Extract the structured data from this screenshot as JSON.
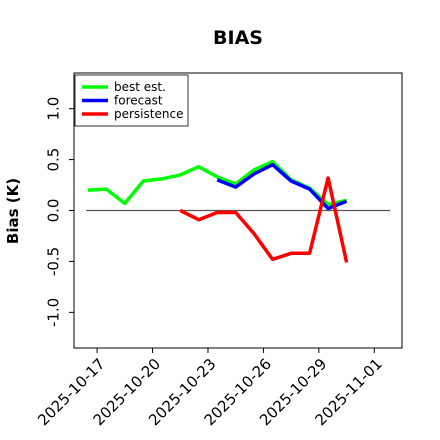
{
  "chart_data": {
    "type": "line",
    "title": "BIAS",
    "xlabel": "",
    "ylabel": "Bias (K)",
    "ylim": [
      -1.35,
      1.35
    ],
    "xlim": [
      "2025-10-15T18:00",
      "2025-11-02T12:00"
    ],
    "yticks": [
      -1.0,
      -0.5,
      0.0,
      0.5,
      1.0
    ],
    "ytick_labels": [
      "-1.0",
      "-0.5",
      "0.0",
      "0.5",
      "1.0"
    ],
    "xticks": [
      "2025-10-17",
      "2025-10-20",
      "2025-10-23",
      "2025-10-26",
      "2025-10-29",
      "2025-11-01"
    ],
    "xtick_labels": [
      "2025-10-17",
      "2025-10-20",
      "2025-10-23",
      "2025-10-26",
      "2025-10-29",
      "2025-11-01"
    ],
    "xtick_colors": [
      "#000000",
      "#000000",
      "#228B22",
      "#000000",
      "#000000",
      "#000000"
    ],
    "reference_line": 0,
    "grid": false,
    "legend_position": "top-left",
    "series": [
      {
        "name": "best est.",
        "color": "#00ff00",
        "x": [
          "2025-10-16T12:00",
          "2025-10-17T12:00",
          "2025-10-18T12:00",
          "2025-10-19T12:00",
          "2025-10-20T12:00",
          "2025-10-21T12:00",
          "2025-10-22T12:00",
          "2025-10-23T12:00",
          "2025-10-24T12:00",
          "2025-10-25T12:00",
          "2025-10-26T12:00",
          "2025-10-27T12:00",
          "2025-10-28T12:00",
          "2025-10-29T12:00",
          "2025-10-30T12:00"
        ],
        "y": [
          0.2,
          0.21,
          0.07,
          0.29,
          0.31,
          0.35,
          0.43,
          0.33,
          0.26,
          0.4,
          0.48,
          0.3,
          0.22,
          0.06,
          0.1
        ]
      },
      {
        "name": "forecast",
        "color": "#0000ff",
        "x": [
          "2025-10-23T12:00",
          "2025-10-24T12:00",
          "2025-10-25T12:00",
          "2025-10-26T12:00",
          "2025-10-27T12:00",
          "2025-10-28T12:00",
          "2025-10-29T12:00",
          "2025-10-30T12:00"
        ],
        "y": [
          0.3,
          0.23,
          0.36,
          0.45,
          0.29,
          0.21,
          0.02,
          0.09
        ]
      },
      {
        "name": "persistence",
        "color": "#ff0000",
        "x": [
          "2025-10-21T12:00",
          "2025-10-22T12:00",
          "2025-10-23T12:00",
          "2025-10-24T12:00",
          "2025-10-25T12:00",
          "2025-10-26T12:00",
          "2025-10-27T12:00",
          "2025-10-28T12:00",
          "2025-10-29T12:00",
          "2025-10-30T12:00"
        ],
        "y": [
          0.0,
          -0.09,
          -0.02,
          -0.02,
          -0.23,
          -0.48,
          -0.42,
          -0.42,
          0.32,
          -0.51
        ]
      }
    ]
  }
}
